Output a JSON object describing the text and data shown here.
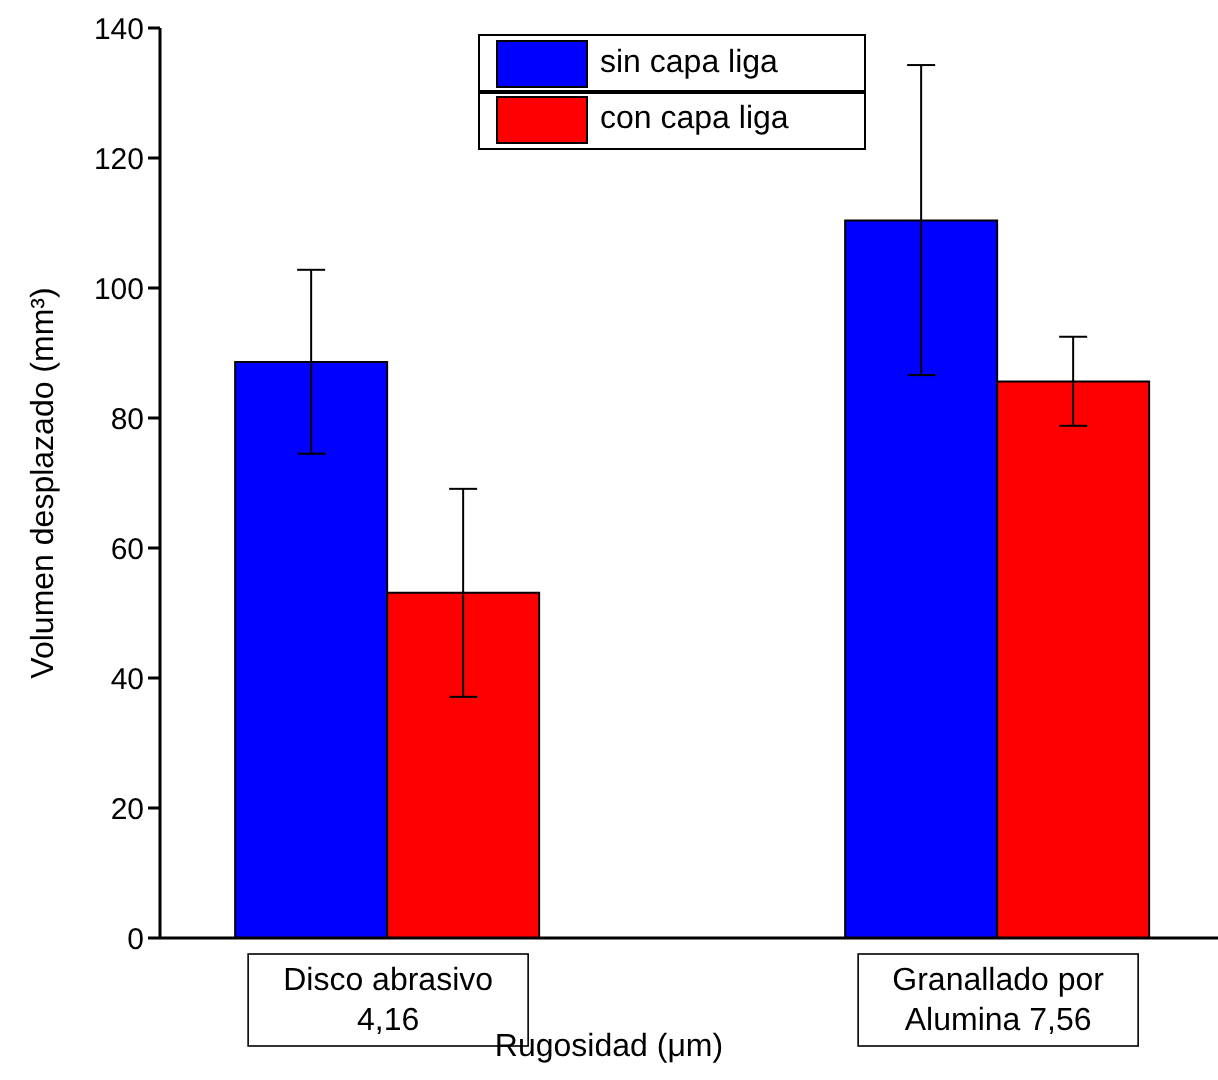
{
  "chart_data": {
    "type": "bar",
    "xlabel": "Rugosidad (μm)",
    "ylabel": "Volumen desplazado (mm³)",
    "categories": [
      "Disco abrasivo 4,16",
      "Granallado por Alumina 7,56"
    ],
    "series": [
      {
        "name": "sin capa liga",
        "color": "#0000ff",
        "values": [
          88.6,
          110.4
        ],
        "errors": [
          [
            74.5,
            102.8
          ],
          [
            86.6,
            134.3
          ]
        ]
      },
      {
        "name": "con capa liga",
        "color": "#ff0000",
        "values": [
          53.1,
          85.6
        ],
        "errors": [
          [
            37.1,
            69.1
          ],
          [
            78.8,
            92.5
          ]
        ]
      }
    ],
    "ylim": [
      0,
      140
    ],
    "yticks": [
      0,
      20,
      40,
      60,
      80,
      100,
      120,
      140
    ],
    "grid": false,
    "legend": "top"
  }
}
